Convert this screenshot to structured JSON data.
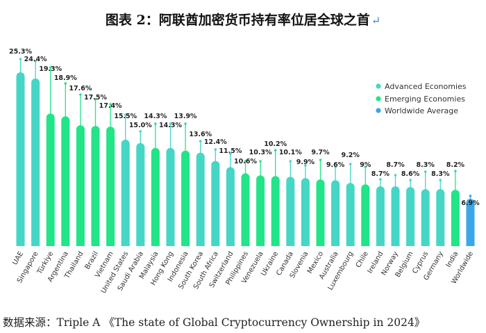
{
  "title": "图表 2：阿联酋加密货币持有率位居全球之首",
  "title_return_glyph": "↵",
  "source": "数据来源：Triple A 《The state of Global Cryptocurrency Ownership in 2024》",
  "colors": {
    "advanced": "#45d6c6",
    "emerging": "#22e488",
    "worldwide": "#3aa8e8"
  },
  "chart_data": {
    "type": "bar",
    "title": "阿联酋加密货币持有率位居全球之首",
    "xlabel": "",
    "ylabel": "",
    "ylim": [
      0,
      27
    ],
    "value_suffix": "%",
    "legend": [
      {
        "key": "advanced",
        "label": "Advanced Economies"
      },
      {
        "key": "emerging",
        "label": "Emerging Economies"
      },
      {
        "key": "worldwide",
        "label": "Worldwide Average"
      }
    ],
    "legend_position": "right",
    "categories": [
      "UAE",
      "Singapore",
      "Türkiye",
      "Argentina",
      "Thailand",
      "Brazil",
      "Vietnam",
      "United States",
      "Saudi Arabia",
      "Malaysia",
      "Hong Kong",
      "Indonesia",
      "South Korea",
      "South Africa",
      "Switzerland",
      "Philippines",
      "Venezuela",
      "Ukraine",
      "Canada",
      "Slovenia",
      "Mexico",
      "Australia",
      "Luxembourg",
      "Chile",
      "Ireland",
      "Norway",
      "Belgium",
      "Cyprus",
      "Germany",
      "India",
      "Worldwide"
    ],
    "values": [
      25.3,
      24.4,
      19.3,
      18.9,
      17.6,
      17.5,
      17.4,
      15.5,
      15.0,
      14.3,
      14.3,
      13.9,
      13.6,
      12.4,
      11.5,
      10.6,
      10.3,
      10.2,
      10.1,
      9.9,
      9.7,
      9.6,
      9.2,
      9,
      8.7,
      8.7,
      8.6,
      8.3,
      8.3,
      8.2,
      6.9
    ],
    "labels": [
      "25.3%",
      "24.4%",
      "19.3%",
      "18.9%",
      "17.6%",
      "17.5%",
      "17.4%",
      "15.5%",
      "15.0%",
      "14.3%",
      "14.3%",
      "13.9%",
      "13.6%",
      "12.4%",
      "11.5%",
      "10.6%",
      "10.3%",
      "10.2%",
      "10.1%",
      "9.9%",
      "9.7%",
      "9.6%",
      "9.2%",
      "9%",
      "8.7%",
      "8.7%",
      "8.6%",
      "8.3%",
      "8.3%",
      "8.2%",
      "6.9%"
    ],
    "groups": [
      "advanced",
      "advanced",
      "emerging",
      "emerging",
      "emerging",
      "emerging",
      "emerging",
      "advanced",
      "advanced",
      "emerging",
      "advanced",
      "emerging",
      "advanced",
      "advanced",
      "advanced",
      "emerging",
      "emerging",
      "emerging",
      "advanced",
      "advanced",
      "emerging",
      "advanced",
      "advanced",
      "emerging",
      "advanced",
      "advanced",
      "advanced",
      "advanced",
      "advanced",
      "emerging",
      "worldwide"
    ]
  }
}
